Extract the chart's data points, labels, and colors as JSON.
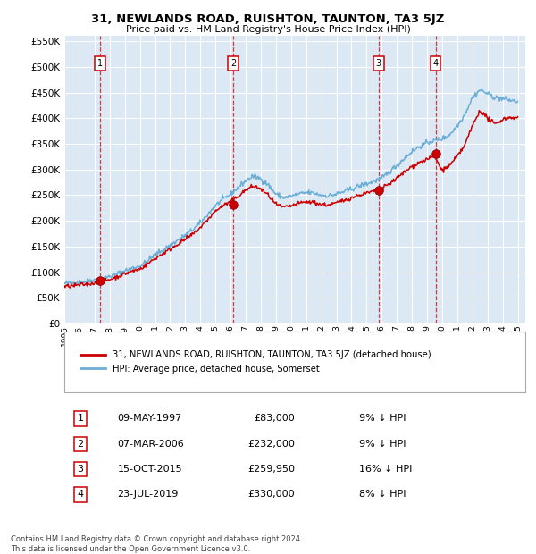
{
  "title": "31, NEWLANDS ROAD, RUISHTON, TAUNTON, TA3 5JZ",
  "subtitle": "Price paid vs. HM Land Registry's House Price Index (HPI)",
  "plot_bg_color": "#dce9f5",
  "ylim": [
    0,
    560000
  ],
  "yticks": [
    0,
    50000,
    100000,
    150000,
    200000,
    250000,
    300000,
    350000,
    400000,
    450000,
    500000,
    550000
  ],
  "hpi_color": "#6baed6",
  "price_color": "#cc0000",
  "sales": [
    {
      "date_num": 1997.36,
      "price": 83000,
      "label": "1"
    },
    {
      "date_num": 2006.18,
      "price": 232000,
      "label": "2"
    },
    {
      "date_num": 2015.79,
      "price": 259950,
      "label": "3"
    },
    {
      "date_num": 2019.56,
      "price": 330000,
      "label": "4"
    }
  ],
  "sale_dates_display": [
    "09-MAY-1997",
    "07-MAR-2006",
    "15-OCT-2015",
    "23-JUL-2019"
  ],
  "sale_prices_display": [
    "£83,000",
    "£232,000",
    "£259,950",
    "£330,000"
  ],
  "sale_pct_display": [
    "9%",
    "9%",
    "16%",
    "8%"
  ],
  "legend_line1": "31, NEWLANDS ROAD, RUISHTON, TAUNTON, TA3 5JZ (detached house)",
  "legend_line2": "HPI: Average price, detached house, Somerset",
  "footnote": "Contains HM Land Registry data © Crown copyright and database right 2024.\nThis data is licensed under the Open Government Licence v3.0.",
  "xmin": 1995.0,
  "xmax": 2025.5,
  "hpi_years": [
    1995.0,
    1995.5,
    1996.0,
    1996.5,
    1997.0,
    1997.5,
    1998.0,
    1998.5,
    1999.0,
    1999.5,
    2000.0,
    2000.5,
    2001.0,
    2001.5,
    2002.0,
    2002.5,
    2003.0,
    2003.5,
    2004.0,
    2004.5,
    2005.0,
    2005.5,
    2006.0,
    2006.5,
    2007.0,
    2007.5,
    2008.0,
    2008.5,
    2009.0,
    2009.5,
    2010.0,
    2010.5,
    2011.0,
    2011.5,
    2012.0,
    2012.5,
    2013.0,
    2013.5,
    2014.0,
    2014.5,
    2015.0,
    2015.5,
    2016.0,
    2016.5,
    2017.0,
    2017.5,
    2018.0,
    2018.5,
    2019.0,
    2019.5,
    2020.0,
    2020.5,
    2021.0,
    2021.5,
    2022.0,
    2022.5,
    2023.0,
    2023.5,
    2024.0,
    2024.5,
    2025.0
  ],
  "hpi_vals": [
    78000,
    79500,
    81000,
    83000,
    85000,
    88000,
    92000,
    97000,
    103000,
    108000,
    112000,
    122000,
    134000,
    143000,
    152000,
    162000,
    172000,
    183000,
    196000,
    213000,
    230000,
    242000,
    252000,
    265000,
    278000,
    287000,
    282000,
    270000,
    252000,
    245000,
    248000,
    252000,
    255000,
    254000,
    250000,
    249000,
    252000,
    257000,
    262000,
    268000,
    272000,
    277000,
    283000,
    295000,
    308000,
    322000,
    335000,
    345000,
    352000,
    357000,
    360000,
    368000,
    385000,
    408000,
    440000,
    455000,
    448000,
    440000,
    438000,
    435000,
    432000
  ],
  "price_years": [
    1995.0,
    1995.5,
    1996.0,
    1996.5,
    1997.0,
    1997.5,
    1998.0,
    1998.5,
    1999.0,
    1999.5,
    2000.0,
    2000.5,
    2001.0,
    2001.5,
    2002.0,
    2002.5,
    2003.0,
    2003.5,
    2004.0,
    2004.5,
    2005.0,
    2005.5,
    2006.0,
    2006.5,
    2007.0,
    2007.5,
    2008.0,
    2008.5,
    2009.0,
    2009.5,
    2010.0,
    2010.5,
    2011.0,
    2011.5,
    2012.0,
    2012.5,
    2013.0,
    2013.5,
    2014.0,
    2014.5,
    2015.0,
    2015.5,
    2016.0,
    2016.5,
    2017.0,
    2017.5,
    2018.0,
    2018.5,
    2019.0,
    2019.5,
    2020.0,
    2020.5,
    2021.0,
    2021.5,
    2022.0,
    2022.5,
    2023.0,
    2023.5,
    2024.0,
    2024.5,
    2025.0
  ],
  "price_vals": [
    72000,
    73500,
    75000,
    77000,
    79000,
    82000,
    86000,
    91000,
    97000,
    102000,
    106000,
    116000,
    127000,
    136000,
    145000,
    155000,
    164000,
    174000,
    187000,
    203000,
    219000,
    230000,
    237000,
    248000,
    260000,
    268000,
    262000,
    250000,
    232000,
    226000,
    229000,
    234000,
    237000,
    236000,
    232000,
    231000,
    235000,
    240000,
    245000,
    250000,
    254000,
    258000,
    263000,
    272000,
    283000,
    295000,
    306000,
    314000,
    320000,
    325000,
    298000,
    308000,
    325000,
    348000,
    385000,
    415000,
    400000,
    388000,
    398000,
    402000,
    400000
  ],
  "xtick_years": [
    1995,
    1996,
    1997,
    1998,
    1999,
    2000,
    2001,
    2002,
    2003,
    2004,
    2005,
    2006,
    2007,
    2008,
    2009,
    2010,
    2011,
    2012,
    2013,
    2014,
    2015,
    2016,
    2017,
    2018,
    2019,
    2020,
    2021,
    2022,
    2023,
    2024,
    2025
  ]
}
